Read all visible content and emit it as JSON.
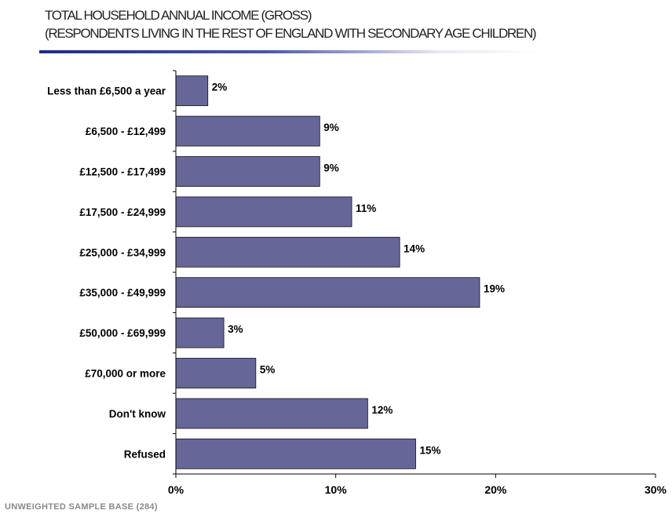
{
  "header": {
    "title_line1": "TOTAL HOUSEHOLD ANNUAL INCOME (GROSS)",
    "title_line2": "(RESPONDENTS LIVING IN THE REST OF ENGLAND WITH SECONDARY AGE CHILDREN)"
  },
  "footer": {
    "sample_base": "UNWEIGHTED SAMPLE BASE (284)"
  },
  "colors": {
    "bar_fill": "#666699",
    "bar_stroke": "#111111",
    "axis": "#000000"
  },
  "chart_data": {
    "type": "bar",
    "orientation": "horizontal",
    "title": "TOTAL HOUSEHOLD ANNUAL INCOME (GROSS)",
    "subtitle": "(RESPONDENTS LIVING IN THE REST OF ENGLAND WITH SECONDARY AGE CHILDREN)",
    "categories": [
      "Less than £6,500 a year",
      "£6,500 - £12,499",
      "£12,500 - £17,499",
      "£17,500 - £24,999",
      "£25,000 - £34,999",
      "£35,000 - £49,999",
      "£50,000 - £69,999",
      "£70,000 or more",
      "Don't know",
      "Refused"
    ],
    "values": [
      2,
      9,
      9,
      11,
      14,
      19,
      3,
      5,
      12,
      15
    ],
    "data_labels": [
      "2%",
      "9%",
      "9%",
      "11%",
      "14%",
      "19%",
      "3%",
      "5%",
      "12%",
      "15%"
    ],
    "xlim": [
      0,
      30
    ],
    "x_ticks": [
      0,
      10,
      20,
      30
    ],
    "x_tick_labels": [
      "0%",
      "10%",
      "20%",
      "30%"
    ],
    "xlabel": "",
    "ylabel": "",
    "grid": false,
    "legend": "none"
  }
}
